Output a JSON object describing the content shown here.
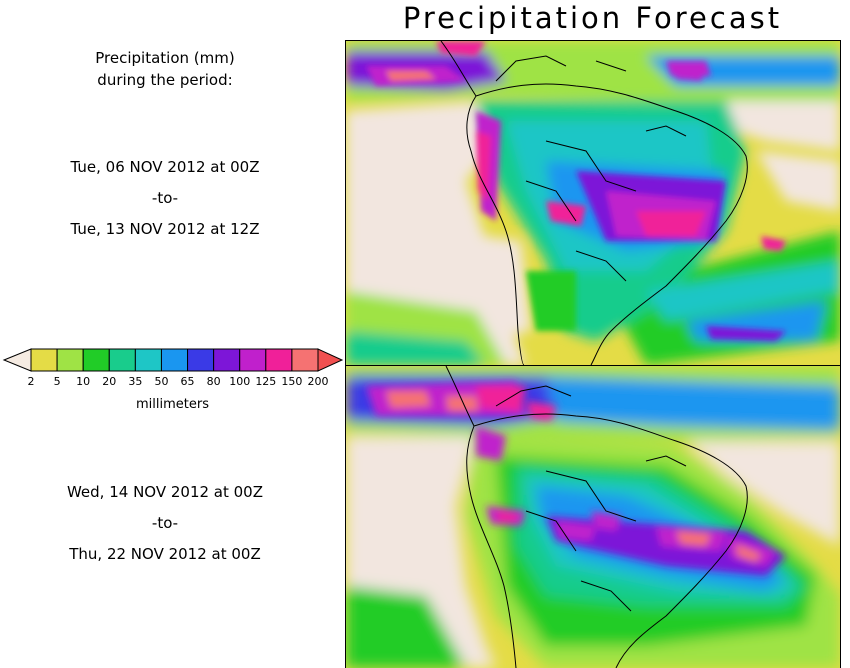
{
  "title": "Precipitation Forecast",
  "header": {
    "line1": "Precipitation (mm)",
    "line2": "during the period:"
  },
  "periods": [
    {
      "start": "Tue, 06 NOV 2012 at 00Z",
      "sep": "-to-",
      "end": "Tue, 13 NOV 2012 at 12Z"
    },
    {
      "start": "Wed, 14 NOV 2012 at 00Z",
      "sep": "-to-",
      "end": "Thu, 22 NOV 2012 at 00Z"
    }
  ],
  "legend": {
    "unit": "millimeters",
    "ticks": [
      "2",
      "5",
      "10",
      "20",
      "35",
      "50",
      "65",
      "80",
      "100",
      "125",
      "150",
      "200"
    ],
    "colors": [
      "#f5ebe2",
      "#e4dc46",
      "#9fe345",
      "#21cc27",
      "#19cc8c",
      "#1ec6c6",
      "#1a96f0",
      "#3a3ae6",
      "#7d16d8",
      "#c020cc",
      "#f02099",
      "#f57272"
    ],
    "end_color": "#f05050"
  },
  "map_colors": {
    "ocean_base": "#e4dc46",
    "land_dry": "#f2e6df",
    "light": "#9fe345",
    "green": "#21cc27",
    "teal": "#19cc8c",
    "cyan": "#1ec6c6",
    "blue": "#1a96f0",
    "indigo": "#3a3ae6",
    "violet": "#7d16d8",
    "magenta": "#c020cc",
    "pink": "#f02099",
    "salmon": "#f57272"
  }
}
